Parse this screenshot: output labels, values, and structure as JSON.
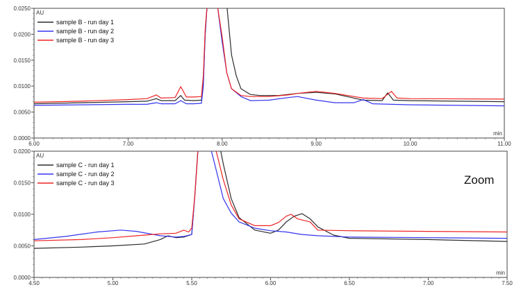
{
  "annotation": "Zoom",
  "chart_data": [
    {
      "type": "line",
      "ylabel": "AU",
      "xlabel": "min",
      "xlim": [
        6.0,
        11.0
      ],
      "ylim": [
        0.0,
        0.025
      ],
      "xticks": [
        "6.00",
        "7.00",
        "8.00",
        "9.00",
        "10.00",
        "11.00"
      ],
      "yticks": [
        "0.0000",
        "0.0050",
        "0.0100",
        "0.0150",
        "0.0200",
        "0.0250"
      ],
      "legend_position": "top-left",
      "grid": false,
      "series": [
        {
          "name": "sample B - run day 1",
          "color": "#2b2b2b",
          "x": [
            6.0,
            6.5,
            7.0,
            7.2,
            7.3,
            7.35,
            7.5,
            7.56,
            7.6,
            7.7,
            7.78,
            7.8,
            7.82,
            7.84,
            7.86,
            8.05,
            8.1,
            8.15,
            8.2,
            8.3,
            8.4,
            8.6,
            8.8,
            9.0,
            9.2,
            9.5,
            9.7,
            9.76,
            9.82,
            10.0,
            10.5,
            11.0
          ],
          "y": [
            0.0066,
            0.0068,
            0.007,
            0.0071,
            0.0076,
            0.0072,
            0.0072,
            0.0082,
            0.0073,
            0.0072,
            0.0073,
            0.011,
            0.02,
            0.0255,
            0.0255,
            0.0255,
            0.016,
            0.012,
            0.0095,
            0.0084,
            0.0082,
            0.0082,
            0.0086,
            0.0088,
            0.0085,
            0.0073,
            0.0072,
            0.0087,
            0.0073,
            0.0072,
            0.0071,
            0.007
          ]
        },
        {
          "name": "sample B - run day 2",
          "color": "#3333ee",
          "x": [
            6.0,
            6.5,
            7.0,
            7.2,
            7.3,
            7.35,
            7.5,
            7.56,
            7.62,
            7.7,
            7.78,
            7.8,
            7.82,
            7.84,
            7.86,
            7.95,
            8.0,
            8.05,
            8.1,
            8.2,
            8.3,
            8.5,
            8.7,
            8.8,
            9.0,
            9.2,
            9.4,
            9.5,
            9.6,
            10.0,
            10.5,
            11.0
          ],
          "y": [
            0.0063,
            0.0064,
            0.0065,
            0.0065,
            0.0068,
            0.0066,
            0.0066,
            0.0072,
            0.0066,
            0.0066,
            0.0067,
            0.01,
            0.02,
            0.0255,
            0.0255,
            0.0255,
            0.0185,
            0.0125,
            0.0095,
            0.008,
            0.0072,
            0.0073,
            0.0078,
            0.008,
            0.0073,
            0.0068,
            0.0068,
            0.0074,
            0.0066,
            0.0064,
            0.0063,
            0.0062
          ]
        },
        {
          "name": "sample B - run day 3",
          "color": "#ee2222",
          "x": [
            6.0,
            6.5,
            7.0,
            7.2,
            7.3,
            7.35,
            7.5,
            7.56,
            7.62,
            7.7,
            7.78,
            7.8,
            7.82,
            7.84,
            7.86,
            7.95,
            8.0,
            8.05,
            8.1,
            8.2,
            8.3,
            8.5,
            8.7,
            8.8,
            9.0,
            9.2,
            9.5,
            9.7,
            9.8,
            9.86,
            10.0,
            11.0
          ],
          "y": [
            0.0069,
            0.0071,
            0.0074,
            0.0076,
            0.0083,
            0.0077,
            0.0078,
            0.0099,
            0.0079,
            0.0079,
            0.008,
            0.012,
            0.021,
            0.0255,
            0.0255,
            0.0255,
            0.0195,
            0.0125,
            0.0095,
            0.0082,
            0.008,
            0.008,
            0.0083,
            0.0086,
            0.009,
            0.0086,
            0.0077,
            0.0076,
            0.009,
            0.0077,
            0.0076,
            0.0075
          ]
        }
      ]
    },
    {
      "type": "line",
      "ylabel": "AU",
      "xlabel": "min",
      "xlim": [
        4.5,
        7.5
      ],
      "ylim": [
        0.0,
        0.02
      ],
      "xticks": [
        "4.50",
        "5.00",
        "5.50",
        "6.00",
        "6.50",
        "7.00",
        "7.50"
      ],
      "yticks": [
        "0.0000",
        "0.0050",
        "0.0100",
        "0.0150",
        "0.0200"
      ],
      "legend_position": "top-left",
      "grid": false,
      "series": [
        {
          "name": "sample C - run day 1",
          "color": "#2b2b2b",
          "x": [
            4.5,
            4.8,
            5.0,
            5.2,
            5.3,
            5.35,
            5.4,
            5.45,
            5.5,
            5.52,
            5.54,
            5.56,
            5.65,
            5.68,
            5.7,
            5.75,
            5.8,
            5.9,
            6.0,
            6.05,
            6.1,
            6.15,
            6.2,
            6.25,
            6.3,
            6.4,
            6.5,
            7.0,
            7.5
          ],
          "y": [
            0.0046,
            0.0048,
            0.005,
            0.0053,
            0.006,
            0.0066,
            0.0063,
            0.0064,
            0.0068,
            0.013,
            0.0205,
            0.0205,
            0.0205,
            0.0205,
            0.018,
            0.0125,
            0.0095,
            0.0075,
            0.007,
            0.0075,
            0.0088,
            0.0097,
            0.0101,
            0.0093,
            0.008,
            0.0067,
            0.0062,
            0.006,
            0.0057
          ]
        },
        {
          "name": "sample C - run day 2",
          "color": "#3333ee",
          "x": [
            4.5,
            4.7,
            4.9,
            5.05,
            5.15,
            5.3,
            5.4,
            5.45,
            5.5,
            5.52,
            5.54,
            5.56,
            5.62,
            5.65,
            5.7,
            5.75,
            5.8,
            5.9,
            6.0,
            6.1,
            6.2,
            6.3,
            6.5,
            7.0,
            7.5
          ],
          "y": [
            0.006,
            0.0065,
            0.0072,
            0.0075,
            0.0073,
            0.0066,
            0.0064,
            0.0065,
            0.0068,
            0.013,
            0.0205,
            0.0205,
            0.0205,
            0.0175,
            0.0125,
            0.0102,
            0.0088,
            0.0078,
            0.0074,
            0.0072,
            0.0068,
            0.0066,
            0.0064,
            0.0063,
            0.0062
          ]
        },
        {
          "name": "sample C - run day 3",
          "color": "#ee2222",
          "x": [
            4.5,
            4.8,
            5.0,
            5.2,
            5.3,
            5.4,
            5.45,
            5.48,
            5.5,
            5.52,
            5.54,
            5.56,
            5.62,
            5.65,
            5.7,
            5.75,
            5.8,
            5.9,
            6.0,
            6.05,
            6.1,
            6.13,
            6.17,
            6.2,
            6.25,
            6.3,
            6.5,
            7.0,
            7.5
          ],
          "y": [
            0.0058,
            0.006,
            0.0063,
            0.0067,
            0.0069,
            0.007,
            0.0075,
            0.0072,
            0.0078,
            0.013,
            0.0205,
            0.0205,
            0.0205,
            0.0205,
            0.0155,
            0.0115,
            0.0093,
            0.0082,
            0.0082,
            0.0087,
            0.0097,
            0.01,
            0.0093,
            0.0091,
            0.0088,
            0.0075,
            0.0074,
            0.0073,
            0.0072
          ]
        }
      ]
    }
  ]
}
